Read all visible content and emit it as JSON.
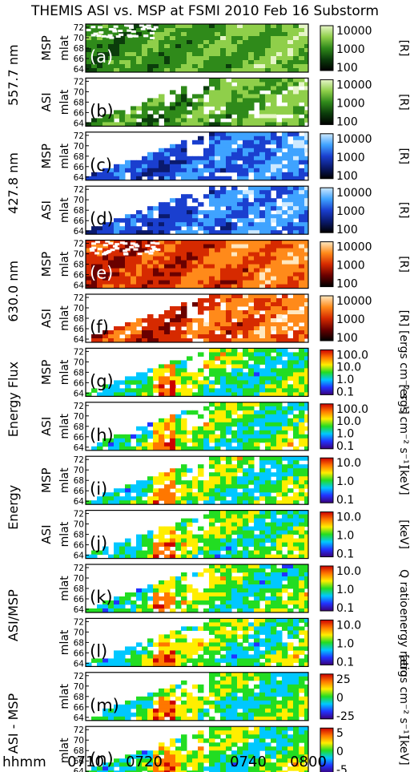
{
  "figure": {
    "title": "THEMIS ASI vs. MSP at FSMI 2010 Feb 16 Substorm",
    "x_prefix": "hhmm",
    "x_ticks": [
      "0710",
      "0720",
      "0740",
      "0800"
    ],
    "y_axis_label": "mlat",
    "y_ticks": [
      "72",
      "70",
      "68",
      "66",
      "64"
    ]
  },
  "groups": [
    {
      "id": "g1",
      "label": "557.7 nm"
    },
    {
      "id": "g2",
      "label": "427.8 nm"
    },
    {
      "id": "g3",
      "label": "630.0 nm"
    },
    {
      "id": "g4",
      "label": "Energy Flux"
    },
    {
      "id": "g5",
      "label": "Energy"
    },
    {
      "id": "g6",
      "label": "ASI/MSP"
    },
    {
      "id": "g7",
      "label": "ASI - MSP"
    }
  ],
  "panels": [
    {
      "letter": "(a)",
      "source": "MSP",
      "cmap": "green",
      "bg": "black",
      "bar": {
        "ticks": [
          "10000",
          "1000",
          "100"
        ],
        "unit": "[R]"
      }
    },
    {
      "letter": "(b)",
      "source": "ASI",
      "cmap": "green",
      "bg": "white",
      "bar": {
        "ticks": [
          "10000",
          "1000",
          "100"
        ],
        "unit": "[R]"
      }
    },
    {
      "letter": "(c)",
      "source": "MSP",
      "cmap": "blue",
      "bg": "white",
      "bar": {
        "ticks": [
          "10000",
          "1000",
          "100"
        ],
        "unit": "[R]"
      }
    },
    {
      "letter": "(d)",
      "source": "ASI",
      "cmap": "blue",
      "bg": "white",
      "bar": {
        "ticks": [
          "10000",
          "1000",
          "100"
        ],
        "unit": "[R]"
      }
    },
    {
      "letter": "(e)",
      "source": "MSP",
      "cmap": "red",
      "bg": "red",
      "bar": {
        "ticks": [
          "10000",
          "1000",
          "100"
        ],
        "unit": "[R]"
      }
    },
    {
      "letter": "(f)",
      "source": "ASI",
      "cmap": "red",
      "bg": "white",
      "bar": {
        "ticks": [
          "10000",
          "1000",
          "100"
        ],
        "unit": "[R]"
      }
    },
    {
      "letter": "(g)",
      "source": "MSP",
      "cmap": "rainbow",
      "bg": "white",
      "bar": {
        "ticks": [
          "100.0",
          "10.0",
          "1.0",
          "0.1"
        ],
        "unit": "[ergs cm⁻² s⁻¹]"
      }
    },
    {
      "letter": "(h)",
      "source": "ASI",
      "cmap": "rainbow",
      "bg": "white",
      "bar": {
        "ticks": [
          "100.0",
          "10.0",
          "1.0",
          "0.1"
        ],
        "unit": "[ergs cm⁻² s⁻¹]"
      }
    },
    {
      "letter": "(i)",
      "source": "MSP",
      "cmap": "rainbow",
      "bg": "white",
      "bar": {
        "ticks": [
          "10.0",
          "1.0",
          "0.1"
        ],
        "unit": "[keV]"
      }
    },
    {
      "letter": "(j)",
      "source": "ASI",
      "cmap": "rainbow",
      "bg": "white",
      "bar": {
        "ticks": [
          "10.0",
          "1.0",
          "0.1"
        ],
        "unit": "[keV]"
      }
    },
    {
      "letter": "(k)",
      "source": "",
      "cmap": "rainbow",
      "bg": "white",
      "bar": {
        "ticks": [
          "10.0",
          "1.0",
          "0.1"
        ],
        "unit": "Q ratio"
      }
    },
    {
      "letter": "(l)",
      "source": "",
      "cmap": "rainbow",
      "bg": "white",
      "bar": {
        "ticks": [
          "10.0",
          "1.0",
          "0.1"
        ],
        "unit": "energy ratio"
      }
    },
    {
      "letter": "(m)",
      "source": "",
      "cmap": "rainbow",
      "bg": "white",
      "bar": {
        "ticks": [
          "25",
          "0",
          "-25"
        ],
        "unit": "[ergs cm⁻² s⁻¹]"
      }
    },
    {
      "letter": "(n)",
      "source": "",
      "cmap": "rainbow",
      "bg": "white",
      "bar": {
        "ticks": [
          "5",
          "0",
          "-5"
        ],
        "unit": "[keV]"
      }
    }
  ],
  "colors": {
    "green": [
      "#000000",
      "#0b3d0b",
      "#2f8a1a",
      "#8fcf4a",
      "#e6f5c8"
    ],
    "blue": [
      "#000000",
      "#0a1a6e",
      "#1a3fcf",
      "#3fa3ff",
      "#cde9ff"
    ],
    "red": [
      "#000000",
      "#6a0000",
      "#d62a00",
      "#ff8a1a",
      "#ffe8c0"
    ],
    "rainbow": [
      "#3a007a",
      "#2233ff",
      "#00c8ff",
      "#22dd22",
      "#ffee00",
      "#ff7700",
      "#cc0000"
    ]
  }
}
